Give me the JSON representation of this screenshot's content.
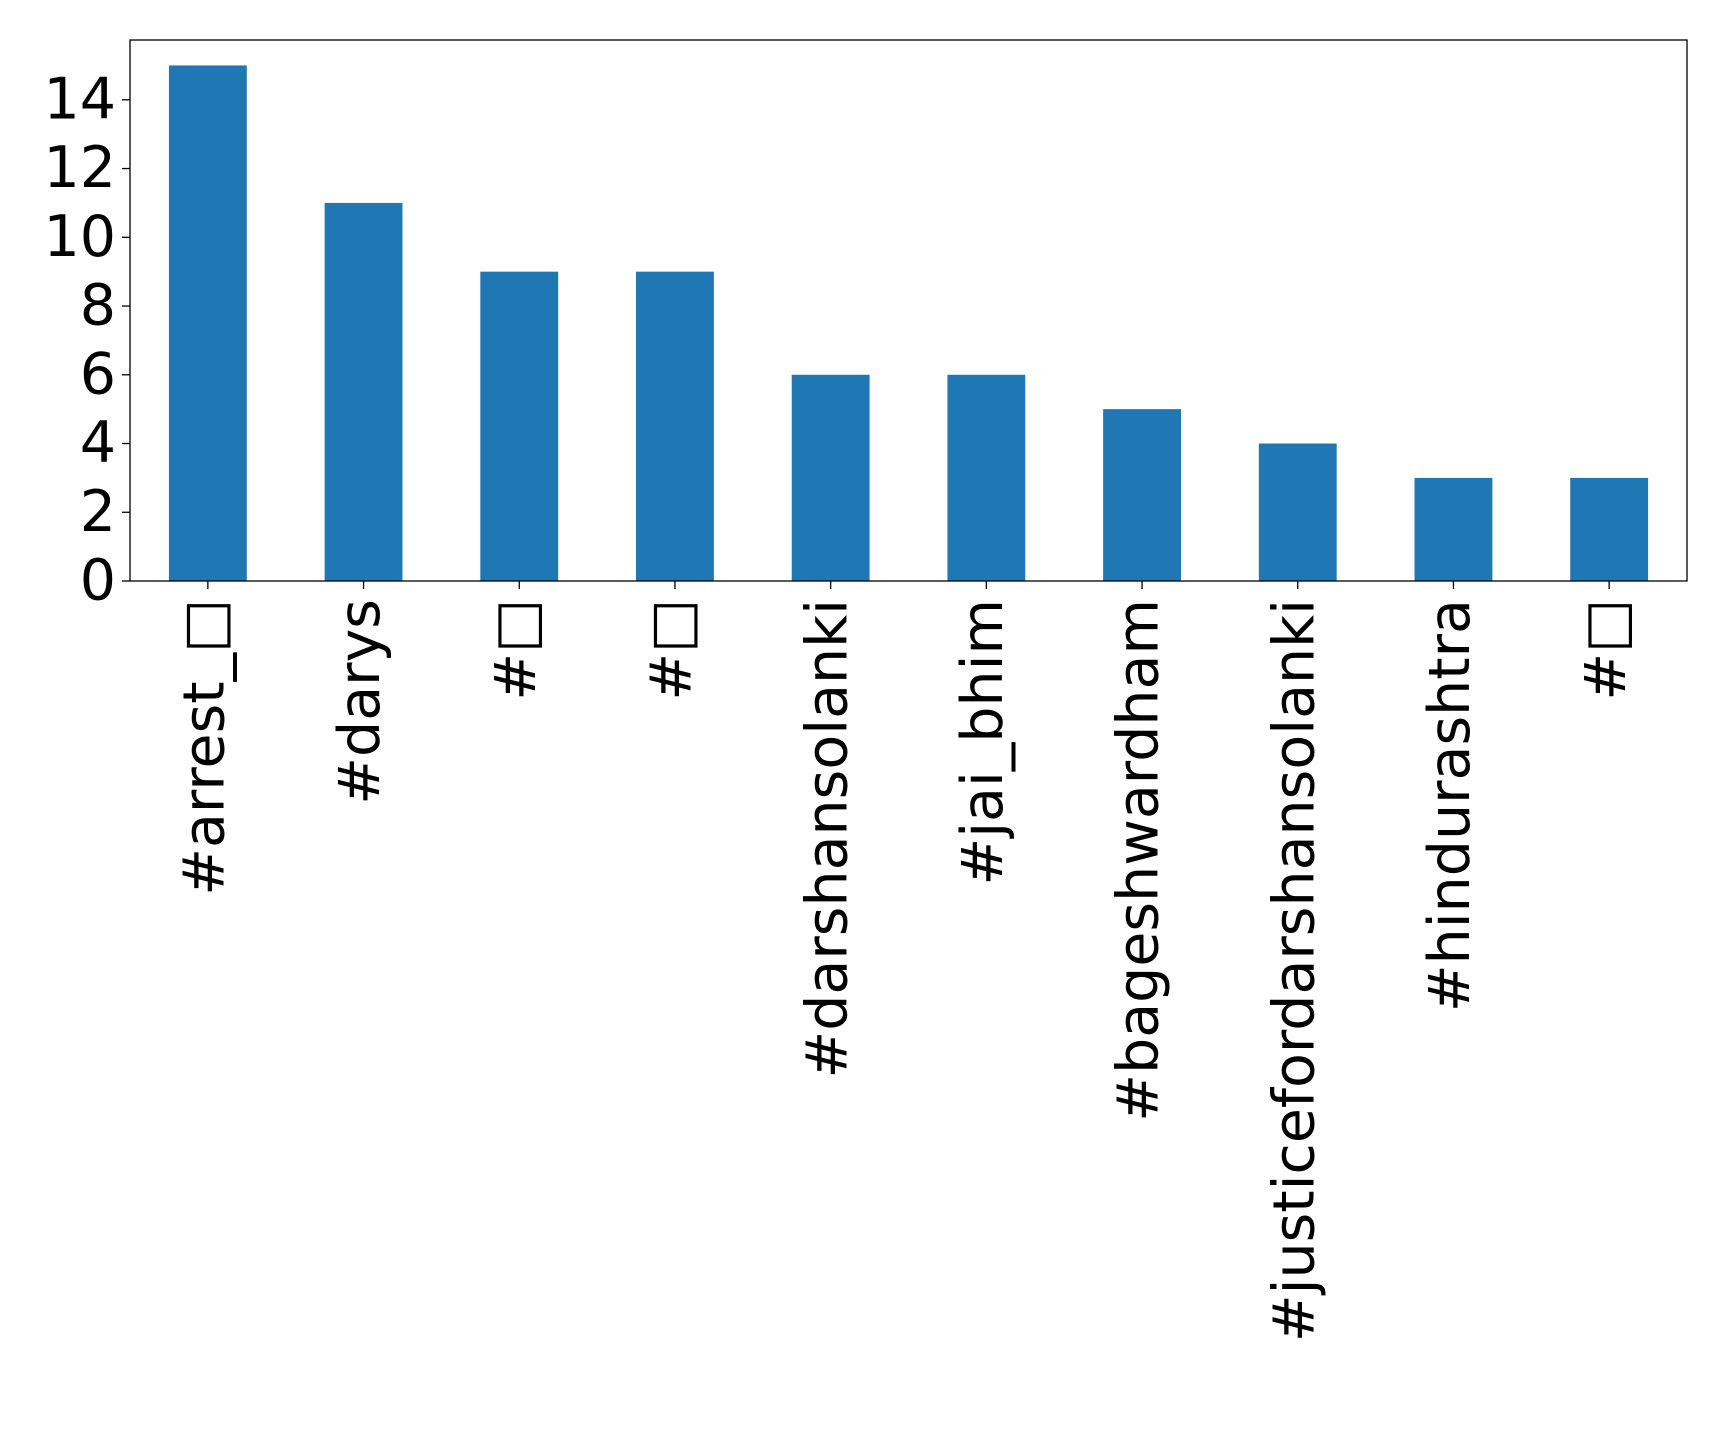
{
  "chart_data": {
    "type": "bar",
    "categories": [
      "#arrest_□",
      "#darys",
      "#□",
      "#□",
      "#darshansolanki",
      "#jai_bhim",
      "#bageshwardham",
      "#justicefordarshansolanki",
      "#hindurashtra",
      "#□"
    ],
    "values": [
      15,
      11,
      9,
      9,
      6,
      6,
      5,
      4,
      3,
      3
    ],
    "color": "#1f77b4",
    "ylim": [
      0,
      15.74
    ],
    "yticks": [
      0,
      2,
      4,
      6,
      8,
      10,
      12,
      14
    ],
    "grid": false
  }
}
